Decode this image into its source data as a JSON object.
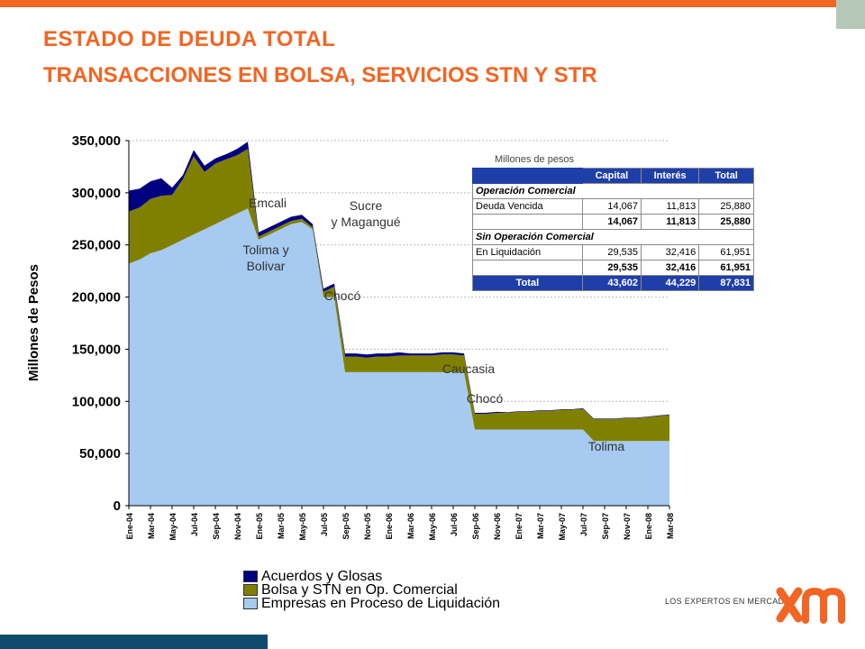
{
  "title": {
    "line1": "ESTADO  DE  DEUDA  TOTAL",
    "line2": "TRANSACCIONES EN BOLSA, SERVICIOS  STN Y STR"
  },
  "colors": {
    "accent_orange": "#f26522",
    "navy": "#0d4a6b",
    "series_acuerdos": "#000080",
    "series_bolsa": "#808000",
    "series_empresas": "#a6caf0",
    "table_header": "#1f3fa8"
  },
  "chart_data": {
    "type": "area",
    "stacked": true,
    "ylabel": "Millones de Pesos",
    "xlabel": "",
    "ylim": [
      0,
      350000
    ],
    "yticks": [
      0,
      50000,
      100000,
      150000,
      200000,
      250000,
      300000,
      350000
    ],
    "ytick_labels": [
      "0",
      "50,000",
      "100,000",
      "150,000",
      "200,000",
      "250,000",
      "300,000",
      "350,000"
    ],
    "grid": true,
    "legend_position": "bottom",
    "xtick_labels": [
      "Ene-04",
      "Mar-04",
      "May-04",
      "Jul-04",
      "Sep-04",
      "Nov-04",
      "Ene-05",
      "Mar-05",
      "May-05",
      "Jul-05",
      "Sep-05",
      "Nov-05",
      "Ene-06",
      "Mar-06",
      "May-06",
      "Jul-06",
      "Sep-06",
      "Nov-06",
      "Ene-07",
      "Mar-07",
      "May-07",
      "Jul-07",
      "Sep-07",
      "Nov-07",
      "Ene-08",
      "Mar-08"
    ],
    "x": [
      "Ene-04",
      "Feb-04",
      "Mar-04",
      "Abr-04",
      "May-04",
      "Jun-04",
      "Jul-04",
      "Ago-04",
      "Sep-04",
      "Oct-04",
      "Nov-04",
      "Dic-04",
      "Ene-05",
      "Feb-05",
      "Mar-05",
      "Abr-05",
      "May-05",
      "Jun-05",
      "Jul-05",
      "Ago-05",
      "Sep-05",
      "Oct-05",
      "Nov-05",
      "Dic-05",
      "Ene-06",
      "Feb-06",
      "Mar-06",
      "Abr-06",
      "May-06",
      "Jun-06",
      "Jul-06",
      "Ago-06",
      "Sep-06",
      "Oct-06",
      "Nov-06",
      "Dic-06",
      "Ene-07",
      "Feb-07",
      "Mar-07",
      "Abr-07",
      "May-07",
      "Jun-07",
      "Jul-07",
      "Ago-07",
      "Sep-07",
      "Oct-07",
      "Nov-07",
      "Dic-07",
      "Ene-08",
      "Feb-08",
      "Mar-08"
    ],
    "series": [
      {
        "name": "Empresas en Proceso de Liquidación",
        "values": [
          232000,
          236000,
          242000,
          245000,
          250000,
          255000,
          260000,
          265000,
          270000,
          275000,
          280000,
          285000,
          255000,
          260000,
          265000,
          270000,
          272000,
          265000,
          200000,
          200000,
          128000,
          128000,
          128000,
          128000,
          128000,
          128000,
          128000,
          128000,
          128000,
          128000,
          128000,
          128000,
          73000,
          73000,
          73000,
          73000,
          73000,
          73000,
          73000,
          73000,
          73000,
          73000,
          73000,
          62000,
          62000,
          62000,
          62000,
          62000,
          62000,
          62000,
          62000
        ]
      },
      {
        "name": "Bolsa y STN en Op. Comercial",
        "values": [
          50000,
          50000,
          52000,
          52000,
          48000,
          58000,
          75000,
          55000,
          58000,
          57000,
          56000,
          57000,
          3000,
          3000,
          3000,
          3000,
          3000,
          2000,
          5000,
          10000,
          15000,
          15000,
          14000,
          15000,
          15000,
          16000,
          16000,
          16000,
          16000,
          17000,
          17000,
          16000,
          15000,
          15000,
          16000,
          16000,
          17000,
          17000,
          18000,
          18000,
          19000,
          19000,
          20000,
          21000,
          21000,
          21000,
          22000,
          22000,
          23000,
          24000,
          25000
        ]
      },
      {
        "name": "Acuerdos y Glosas",
        "values": [
          20000,
          18000,
          17000,
          17000,
          7000,
          4000,
          6000,
          6000,
          5000,
          5000,
          6000,
          7000,
          4000,
          4000,
          4000,
          4000,
          4000,
          3000,
          3000,
          3000,
          3000,
          3000,
          3000,
          3000,
          3000,
          3000,
          2000,
          2000,
          2000,
          2000,
          2000,
          2000,
          1000,
          1000,
          1000,
          500,
          500,
          500,
          500,
          500,
          500,
          500,
          500,
          500,
          500,
          500,
          500,
          500,
          500,
          500,
          500
        ]
      }
    ],
    "annotations": [
      "Emcali",
      "Sucre\ny Magangué",
      "Tolima y\nBolivar",
      "Chocó",
      "Caucasia",
      "Chocó",
      "Tolima"
    ]
  },
  "table": {
    "units": "Millones de pesos",
    "columns": [
      "Capital",
      "Interés",
      "Total"
    ],
    "section1": "Operación Comercial",
    "rows1": [
      {
        "label": "Deuda Vencida",
        "capital": "14,067",
        "interes": "11,813",
        "total": "25,880"
      }
    ],
    "subtotal1": {
      "capital": "14,067",
      "interes": "11,813",
      "total": "25,880"
    },
    "section2": "Sin Operación Comercial",
    "rows2": [
      {
        "label": "En Liquidación",
        "capital": "29,535",
        "interes": "32,416",
        "total": "61,951"
      }
    ],
    "subtotal2": {
      "capital": "29,535",
      "interes": "32,416",
      "total": "61,951"
    },
    "total": {
      "label": "Total",
      "capital": "43,602",
      "interes": "44,229",
      "total": "87,831"
    }
  },
  "logo": {
    "tagline": "LOS EXPERTOS EN MERCADOS",
    "mark": "xm"
  }
}
